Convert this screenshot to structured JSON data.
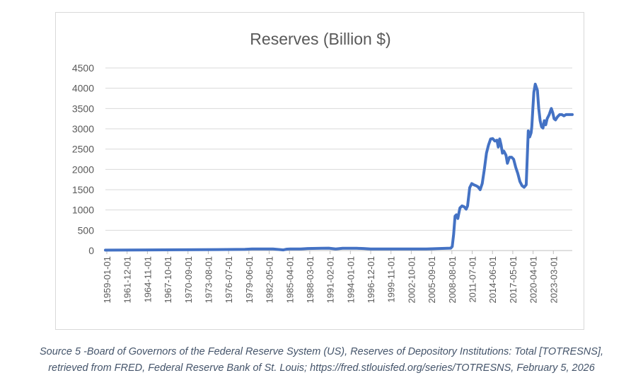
{
  "chart_data": {
    "type": "line",
    "title": "Reserves  (Billion $)",
    "xlabel": "",
    "ylabel": "",
    "ylim": [
      0,
      4500
    ],
    "yticks": [
      0,
      500,
      1000,
      1500,
      2000,
      2500,
      3000,
      3500,
      4000,
      4500
    ],
    "grid": true,
    "legend": "none",
    "x_start": 1959.0,
    "x_end": 2025.9,
    "xtick_labels": [
      "1959-01-01",
      "1961-12-01",
      "1964-11-01",
      "1967-10-01",
      "1970-09-01",
      "1973-08-01",
      "1976-07-01",
      "1979-06-01",
      "1982-05-01",
      "1985-04-01",
      "1988-03-01",
      "1991-02-01",
      "1994-01-01",
      "1996-12-01",
      "1999-11-01",
      "2002-10-01",
      "2005-09-01",
      "2008-08-01",
      "2011-07-01",
      "2014-06-01",
      "2017-05-01",
      "2020-04-01",
      "2023-03-01"
    ],
    "series": [
      {
        "name": "Reserves",
        "color": "#4472c4",
        "x": [
          1959.0,
          1965.0,
          1970.0,
          1975.0,
          1979.0,
          1980.0,
          1983.0,
          1984.0,
          1984.5,
          1985.0,
          1985.5,
          1987.0,
          1988.0,
          1990.0,
          1991.0,
          1992.0,
          1993.0,
          1995.0,
          1996.0,
          1997.0,
          2000.0,
          2005.0,
          2008.5,
          2008.7,
          2008.9,
          2009.1,
          2009.3,
          2009.5,
          2009.8,
          2010.1,
          2010.4,
          2010.7,
          2010.9,
          2011.2,
          2011.5,
          2011.8,
          2012.1,
          2012.4,
          2012.7,
          2013.0,
          2013.3,
          2013.6,
          2013.9,
          2014.2,
          2014.5,
          2014.8,
          2015.1,
          2015.3,
          2015.5,
          2015.7,
          2015.9,
          2016.1,
          2016.4,
          2016.6,
          2016.9,
          2017.2,
          2017.5,
          2017.8,
          2018.1,
          2018.4,
          2018.7,
          2019.0,
          2019.3,
          2019.6,
          2019.8,
          2020.0,
          2020.1,
          2020.25,
          2020.4,
          2020.6,
          2020.9,
          2021.1,
          2021.3,
          2021.5,
          2021.7,
          2021.9,
          2022.1,
          2022.3,
          2022.6,
          2022.9,
          2023.1,
          2023.3,
          2023.5,
          2023.8,
          2024.1,
          2024.4,
          2024.7,
          2025.0,
          2025.3,
          2025.6,
          2025.9
        ],
        "values": [
          10,
          15,
          20,
          25,
          30,
          40,
          40,
          25,
          15,
          35,
          40,
          40,
          50,
          55,
          60,
          40,
          55,
          55,
          50,
          40,
          40,
          40,
          60,
          100,
          400,
          850,
          880,
          790,
          1050,
          1100,
          1080,
          1020,
          1100,
          1550,
          1650,
          1620,
          1600,
          1570,
          1500,
          1650,
          2000,
          2400,
          2600,
          2750,
          2760,
          2700,
          2720,
          2550,
          2750,
          2600,
          2400,
          2450,
          2350,
          2150,
          2300,
          2300,
          2250,
          2050,
          1900,
          1700,
          1600,
          1560,
          1620,
          2950,
          2800,
          2900,
          3050,
          3500,
          3900,
          4100,
          3950,
          3500,
          3200,
          3050,
          3020,
          3200,
          3100,
          3250,
          3350,
          3500,
          3400,
          3250,
          3220,
          3300,
          3350,
          3350,
          3320,
          3350,
          3350,
          3350,
          3350
        ]
      }
    ]
  },
  "caption": {
    "line1": "Source 5 -Board of Governors of the Federal Reserve System (US), Reserves of Depository Institutions: Total [TOTRESNS],",
    "line2": "retrieved from FRED, Federal Reserve Bank of St. Louis; https://fred.stlouisfed.org/series/TOTRESNS, February 5, 2026"
  }
}
